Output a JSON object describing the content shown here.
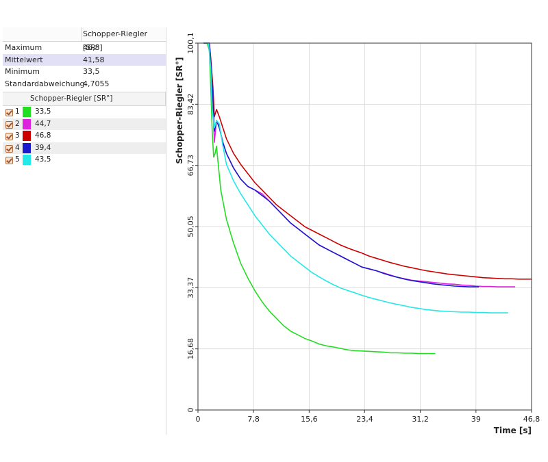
{
  "stats": {
    "column_header": "Schopper-Riegler [SR°]",
    "rows": [
      {
        "label": "Maximum",
        "value": "46,8"
      },
      {
        "label": "Mittelwert",
        "value": "41,58"
      },
      {
        "label": "Minimum",
        "value": "33,5"
      },
      {
        "label": "Standardabweichung",
        "value": "4,7055"
      }
    ]
  },
  "series_table": {
    "column_header": "Schopper-Riegler [SR°]",
    "rows": [
      {
        "index": "1",
        "value": "33,5",
        "color": "#22dd22"
      },
      {
        "index": "2",
        "value": "44,7",
        "color": "#dd22dd"
      },
      {
        "index": "3",
        "value": "46,8",
        "color": "#cc0000"
      },
      {
        "index": "4",
        "value": "39,4",
        "color": "#1a1acc"
      },
      {
        "index": "5",
        "value": "43,5",
        "color": "#22e8e8"
      }
    ]
  },
  "chart_data": {
    "type": "line",
    "xlabel": "Time [s]",
    "ylabel": "Schopper-Riegler [SR°]",
    "xlim": [
      0,
      46.8
    ],
    "ylim": [
      0,
      100.1
    ],
    "xticks": [
      "0",
      "7,8",
      "15,6",
      "23,4",
      "31,2",
      "39",
      "46,8"
    ],
    "xtick_values": [
      0,
      7.8,
      15.6,
      23.4,
      31.2,
      39,
      46.8
    ],
    "yticks": [
      "0",
      "16,68",
      "33,37",
      "50,05",
      "66,73",
      "83,42",
      "100,1"
    ],
    "ytick_values": [
      0,
      16.68,
      33.37,
      50.05,
      66.73,
      83.42,
      100.1
    ],
    "grid": true,
    "series": [
      {
        "color": "#22dd22",
        "points": [
          [
            0.8,
            100.1
          ],
          [
            1.3,
            100.1
          ],
          [
            1.6,
            98
          ],
          [
            1.8,
            88
          ],
          [
            2.0,
            76
          ],
          [
            2.2,
            69
          ],
          [
            2.4,
            70
          ],
          [
            2.6,
            72
          ],
          [
            2.8,
            68
          ],
          [
            3.2,
            60
          ],
          [
            4,
            52
          ],
          [
            5,
            45.5
          ],
          [
            6,
            40
          ],
          [
            7,
            36
          ],
          [
            8,
            32.5
          ],
          [
            9,
            29.5
          ],
          [
            10,
            27
          ],
          [
            11,
            25
          ],
          [
            12,
            23
          ],
          [
            13,
            21.5
          ],
          [
            14,
            20.5
          ],
          [
            15,
            19.5
          ],
          [
            16,
            18.8
          ],
          [
            17,
            18
          ],
          [
            18,
            17.5
          ],
          [
            19,
            17.2
          ],
          [
            20,
            16.8
          ],
          [
            21,
            16.4
          ],
          [
            22,
            16.2
          ],
          [
            23,
            16.1
          ],
          [
            24,
            16
          ],
          [
            25,
            15.9
          ],
          [
            26,
            15.8
          ],
          [
            27,
            15.6
          ],
          [
            28,
            15.6
          ],
          [
            29,
            15.5
          ],
          [
            30,
            15.5
          ],
          [
            31,
            15.4
          ],
          [
            32,
            15.4
          ],
          [
            33.3,
            15.4
          ]
        ]
      },
      {
        "color": "#dd22dd",
        "points": [
          [
            0.8,
            100.1
          ],
          [
            1.6,
            100.1
          ],
          [
            1.8,
            95
          ],
          [
            2.1,
            84
          ],
          [
            2.3,
            73
          ],
          [
            2.6,
            79
          ],
          [
            3.0,
            77
          ],
          [
            3.5,
            73
          ],
          [
            4,
            70
          ],
          [
            5,
            66
          ],
          [
            6,
            63
          ],
          [
            7,
            61
          ],
          [
            8,
            60
          ],
          [
            9,
            59
          ],
          [
            10,
            57
          ],
          [
            11,
            55
          ],
          [
            12,
            53
          ],
          [
            13,
            51
          ],
          [
            14,
            49.5
          ],
          [
            15,
            48
          ],
          [
            16,
            46.5
          ],
          [
            17,
            45
          ],
          [
            18,
            44
          ],
          [
            19,
            43
          ],
          [
            20,
            42
          ],
          [
            21,
            41
          ],
          [
            22,
            40
          ],
          [
            23,
            39
          ],
          [
            24,
            38.5
          ],
          [
            25,
            38
          ],
          [
            26,
            37.4
          ],
          [
            27,
            36.8
          ],
          [
            28,
            36.2
          ],
          [
            29,
            35.8
          ],
          [
            30,
            35.4
          ],
          [
            31,
            35.2
          ],
          [
            32,
            35
          ],
          [
            33,
            34.8
          ],
          [
            34,
            34.6
          ],
          [
            35,
            34.4
          ],
          [
            36,
            34.3
          ],
          [
            37,
            34.1
          ],
          [
            38,
            34
          ],
          [
            39,
            33.8
          ],
          [
            40,
            33.7
          ],
          [
            41,
            33.7
          ],
          [
            42,
            33.6
          ],
          [
            43,
            33.6
          ],
          [
            44.5,
            33.6
          ]
        ]
      },
      {
        "color": "#cc0000",
        "points": [
          [
            0.8,
            100.1
          ],
          [
            1.6,
            100.1
          ],
          [
            1.8,
            96
          ],
          [
            2.1,
            88
          ],
          [
            2.3,
            80
          ],
          [
            2.6,
            82
          ],
          [
            3.0,
            80
          ],
          [
            3.5,
            77
          ],
          [
            4,
            74
          ],
          [
            5,
            70
          ],
          [
            6,
            67
          ],
          [
            7,
            64.5
          ],
          [
            8,
            62
          ],
          [
            9,
            60
          ],
          [
            10,
            58
          ],
          [
            11,
            56
          ],
          [
            12,
            54.5
          ],
          [
            13,
            53
          ],
          [
            14,
            51.5
          ],
          [
            15,
            50
          ],
          [
            16,
            49
          ],
          [
            17,
            48
          ],
          [
            18,
            47
          ],
          [
            19,
            46
          ],
          [
            20,
            45
          ],
          [
            21,
            44.2
          ],
          [
            22,
            43.5
          ],
          [
            23,
            42.8
          ],
          [
            24,
            42
          ],
          [
            25,
            41.4
          ],
          [
            26,
            40.8
          ],
          [
            27,
            40.2
          ],
          [
            28,
            39.7
          ],
          [
            29,
            39.2
          ],
          [
            30,
            38.8
          ],
          [
            31,
            38.4
          ],
          [
            32,
            38
          ],
          [
            33,
            37.7
          ],
          [
            34,
            37.4
          ],
          [
            35,
            37.1
          ],
          [
            36,
            36.9
          ],
          [
            37,
            36.7
          ],
          [
            38,
            36.5
          ],
          [
            39,
            36.3
          ],
          [
            40,
            36.1
          ],
          [
            41,
            36
          ],
          [
            42,
            35.9
          ],
          [
            43,
            35.8
          ],
          [
            44,
            35.8
          ],
          [
            45,
            35.7
          ],
          [
            46,
            35.7
          ],
          [
            46.8,
            35.7
          ]
        ]
      },
      {
        "color": "#1a1acc",
        "points": [
          [
            0.8,
            100.1
          ],
          [
            1.6,
            100.1
          ],
          [
            1.8,
            95
          ],
          [
            2.1,
            85
          ],
          [
            2.3,
            76
          ],
          [
            2.6,
            79
          ],
          [
            3.0,
            77
          ],
          [
            3.5,
            73
          ],
          [
            4,
            70
          ],
          [
            5,
            66
          ],
          [
            6,
            63
          ],
          [
            7,
            61
          ],
          [
            8,
            60
          ],
          [
            9,
            58.5
          ],
          [
            10,
            57
          ],
          [
            11,
            55
          ],
          [
            12,
            53
          ],
          [
            13,
            51
          ],
          [
            14,
            49.5
          ],
          [
            15,
            48
          ],
          [
            16,
            46.5
          ],
          [
            17,
            45
          ],
          [
            18,
            44
          ],
          [
            19,
            43
          ],
          [
            20,
            42
          ],
          [
            21,
            41
          ],
          [
            22,
            40
          ],
          [
            23,
            39
          ],
          [
            24,
            38.5
          ],
          [
            25,
            38
          ],
          [
            26,
            37.3
          ],
          [
            27,
            36.7
          ],
          [
            28,
            36.2
          ],
          [
            29,
            35.7
          ],
          [
            30,
            35.3
          ],
          [
            31,
            35
          ],
          [
            32,
            34.7
          ],
          [
            33,
            34.4
          ],
          [
            34,
            34.2
          ],
          [
            35,
            34
          ],
          [
            36,
            33.8
          ],
          [
            37,
            33.7
          ],
          [
            38,
            33.6
          ],
          [
            39,
            33.6
          ],
          [
            39.4,
            33.6
          ]
        ]
      },
      {
        "color": "#22e8e8",
        "points": [
          [
            0.8,
            100.1
          ],
          [
            1.5,
            100.1
          ],
          [
            1.8,
            93
          ],
          [
            2.0,
            82
          ],
          [
            2.3,
            77
          ],
          [
            2.6,
            79
          ],
          [
            3.0,
            78
          ],
          [
            3.5,
            72
          ],
          [
            4,
            67
          ],
          [
            5,
            62.5
          ],
          [
            6,
            59
          ],
          [
            7,
            56
          ],
          [
            8,
            53
          ],
          [
            9,
            50.5
          ],
          [
            10,
            48
          ],
          [
            11,
            46
          ],
          [
            12,
            44
          ],
          [
            13,
            42
          ],
          [
            14,
            40.5
          ],
          [
            15,
            39
          ],
          [
            16,
            37.5
          ],
          [
            17,
            36.3
          ],
          [
            18,
            35.2
          ],
          [
            19,
            34.2
          ],
          [
            20,
            33.3
          ],
          [
            21,
            32.6
          ],
          [
            22,
            32
          ],
          [
            23,
            31.3
          ],
          [
            24,
            30.7
          ],
          [
            25,
            30.2
          ],
          [
            26,
            29.7
          ],
          [
            27,
            29.2
          ],
          [
            28,
            28.8
          ],
          [
            29,
            28.4
          ],
          [
            30,
            28
          ],
          [
            31,
            27.7
          ],
          [
            32,
            27.4
          ],
          [
            33,
            27.2
          ],
          [
            34,
            27
          ],
          [
            35,
            26.9
          ],
          [
            36,
            26.8
          ],
          [
            37,
            26.7
          ],
          [
            38,
            26.7
          ],
          [
            39,
            26.6
          ],
          [
            40,
            26.6
          ],
          [
            41,
            26.5
          ],
          [
            42,
            26.5
          ],
          [
            43.5,
            26.5
          ]
        ]
      }
    ]
  }
}
